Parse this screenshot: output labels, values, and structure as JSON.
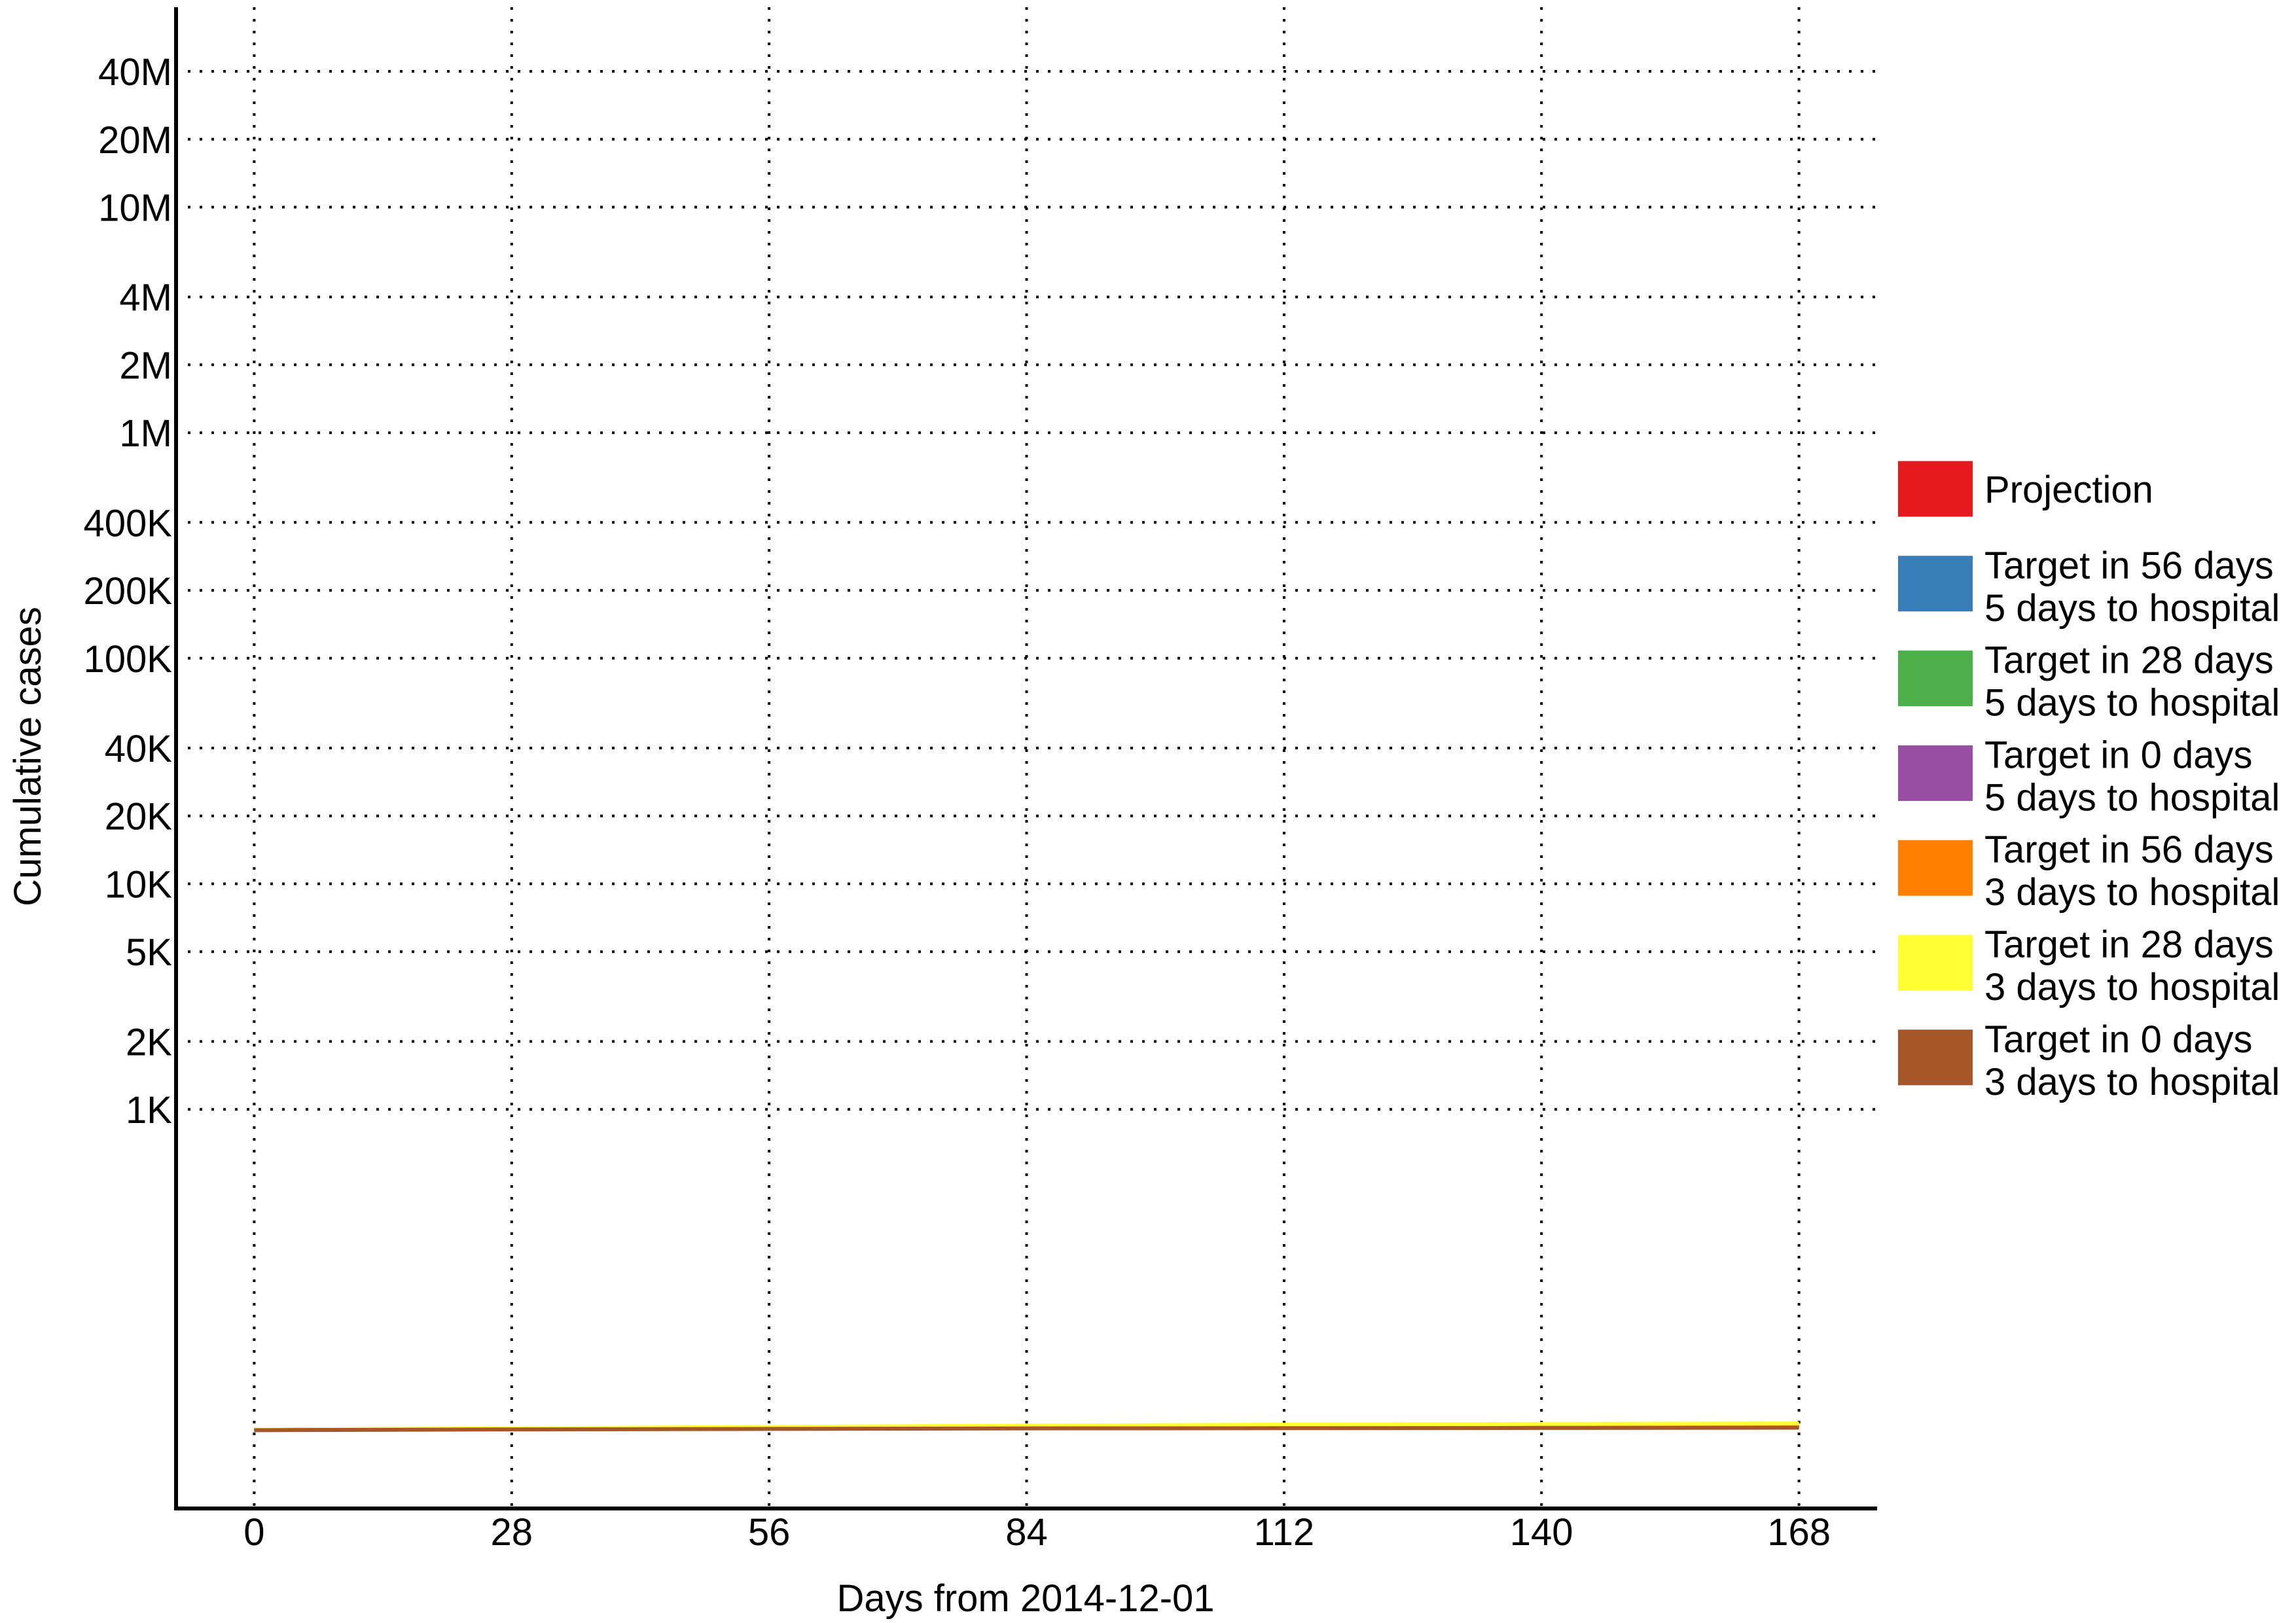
{
  "chart_data": {
    "type": "line",
    "xlabel": "Days from 2014-12-01",
    "ylabel": "Cumulative cases",
    "x_scale": "linear",
    "y_scale": "log",
    "xlim": [
      -8.5,
      176.5
    ],
    "ylim": [
      17,
      77000000
    ],
    "grid": true,
    "legend_position": "right",
    "x_ticks": [
      0,
      28,
      56,
      84,
      112,
      140,
      168
    ],
    "x_tick_labels": [
      "0",
      "28",
      "56",
      "84",
      "112",
      "140",
      "168"
    ],
    "y_ticks": [
      1000,
      2000,
      5000,
      10000,
      20000,
      40000,
      100000,
      200000,
      400000,
      1000000,
      2000000,
      4000000,
      10000000,
      20000000,
      40000000
    ],
    "y_tick_labels": [
      "1K",
      "2K",
      "5K",
      "10K",
      "20K",
      "40K",
      "100K",
      "200K",
      "400K",
      "1M",
      "2M",
      "4M",
      "10M",
      "20M",
      "40M"
    ],
    "x": [
      0,
      28,
      56,
      84,
      112,
      140,
      168
    ],
    "series": [
      {
        "name_lines": [
          "Projection"
        ],
        "color": "#E41A1C",
        "values": [
          38,
          38.3,
          38.6,
          38.9,
          39.1,
          39.3,
          39.5
        ]
      },
      {
        "name_lines": [
          "Target in 56 days",
          "5 days to hospital"
        ],
        "color": "#377EB8",
        "values": [
          38,
          38.3,
          38.6,
          38.9,
          39.1,
          39.2,
          39.3
        ]
      },
      {
        "name_lines": [
          "Target in 28 days",
          "5 days to hospital"
        ],
        "color": "#4DAF4A",
        "values": [
          38,
          38.3,
          38.6,
          38.8,
          39.0,
          39.1,
          39.2
        ]
      },
      {
        "name_lines": [
          "Target in 0 days",
          "5 days to hospital"
        ],
        "color": "#984EA3",
        "values": [
          38,
          38.2,
          38.4,
          38.6,
          38.7,
          38.8,
          38.9
        ]
      },
      {
        "name_lines": [
          "Target in 56 days",
          "3 days to hospital"
        ],
        "color": "#FF7F00",
        "values": [
          38,
          38.4,
          38.8,
          39.2,
          39.5,
          39.7,
          39.9
        ]
      },
      {
        "name_lines": [
          "Target in 28 days",
          "3 days to hospital"
        ],
        "color": "#FFFF33",
        "values": [
          38,
          38.5,
          39.1,
          39.6,
          40.0,
          40.3,
          40.5
        ]
      },
      {
        "name_lines": [
          "Target in 0 days",
          "3 days to hospital"
        ],
        "color": "#A65628",
        "values": [
          37.8,
          38.1,
          38.3,
          38.5,
          38.6,
          38.7,
          38.8
        ]
      }
    ]
  }
}
